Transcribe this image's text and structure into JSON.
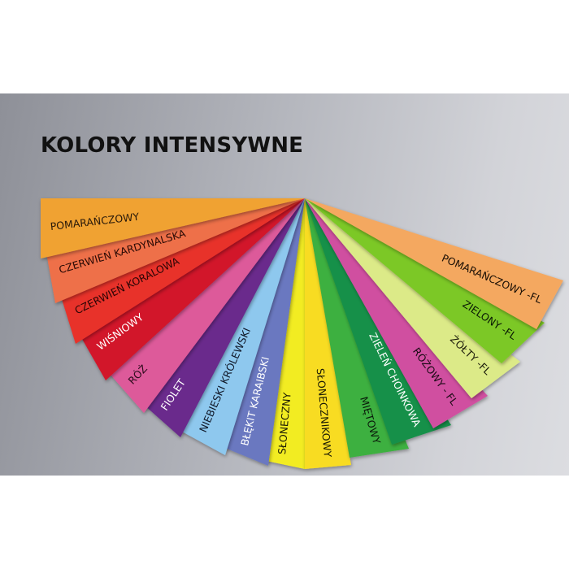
{
  "title": "KOLORY INTENSYWNE",
  "strips": [
    {
      "label": "POMARAŃCZOWY",
      "color": "#f0a232",
      "text_color": "#2a1a0a"
    },
    {
      "label": "CZERWIEŃ KARDYNALSKA",
      "color": "#ee7048",
      "text_color": "#2a0a05"
    },
    {
      "label": "CZERWIEŃ KORALOWA",
      "color": "#e8302a",
      "text_color": "#2a0505"
    },
    {
      "label": "WIŚNIOWY",
      "color": "#d2142a",
      "text_color": "#ffffff"
    },
    {
      "label": "RÓŻ",
      "color": "#dd5a9a",
      "text_color": "#2a0a1a"
    },
    {
      "label": "FIOLET",
      "color": "#6a2a8c",
      "text_color": "#ffffff"
    },
    {
      "label": "NIEBIESKI KRÓLEWSKI",
      "color": "#8ec8ee",
      "text_color": "#101828"
    },
    {
      "label": "BŁĘKIT KARAIBSKI",
      "color": "#6a78c0",
      "text_color": "#ffffff"
    },
    {
      "label": "SŁONECZNY",
      "color": "#f2ec20",
      "text_color": "#1a1a05"
    },
    {
      "label": "SŁONECZNIKOWY",
      "color": "#f8dc20",
      "text_color": "#1a1a05"
    },
    {
      "label": "MIĘTOWY",
      "color": "#3cb040",
      "text_color": "#0a1a0a"
    },
    {
      "label": "ZIELEŃ CHOINKOWA",
      "color": "#189048",
      "text_color": "#ffffff"
    },
    {
      "label": "RÓŻOWY - FL",
      "color": "#d050a0",
      "text_color": "#1a0a14"
    },
    {
      "label": "ŻÓŁTY -FL",
      "color": "#dcea88",
      "text_color": "#1a1a0a"
    },
    {
      "label": "ZIELONY -FL",
      "color": "#7cc828",
      "text_color": "#0a1a05"
    },
    {
      "label": "POMARAŃCZOWY -FL",
      "color": "#f4a860",
      "text_color": "#1a0f05"
    }
  ]
}
